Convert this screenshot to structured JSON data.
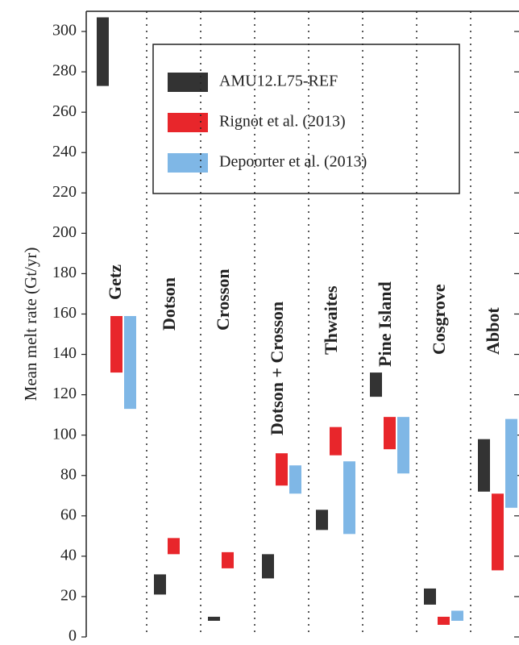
{
  "chart_data": {
    "type": "range-bar",
    "y_label": "Mean melt rate (Gt/yr)",
    "categories": [
      "Getz",
      "Dotson",
      "Crosson",
      "Dotson + Crosson",
      "Thwaites",
      "Pine Island",
      "Cosgrove",
      "Abbot"
    ],
    "series": [
      {
        "name": "AMU12.L75-REF",
        "color": "#333333",
        "low": [
          273,
          21,
          8,
          29,
          53,
          119,
          16,
          72
        ],
        "high": [
          307,
          31,
          10,
          41,
          63,
          131,
          24,
          98
        ]
      },
      {
        "name": "Rignot et al. (2013)",
        "color": "#e8262b",
        "low": [
          131,
          41,
          34,
          75,
          90,
          93,
          6,
          33
        ],
        "high": [
          159,
          49,
          42,
          91,
          104,
          109,
          10,
          71
        ]
      },
      {
        "name": "Depoorter et al. (2013)",
        "color": "#7fb7e6",
        "low": [
          113,
          null,
          null,
          71,
          51,
          81,
          8,
          64
        ],
        "high": [
          159,
          null,
          null,
          85,
          87,
          109,
          13,
          108
        ]
      }
    ],
    "ylim": [
      0,
      310
    ],
    "yticks": [
      0,
      20,
      40,
      60,
      80,
      100,
      120,
      140,
      160,
      180,
      200,
      220,
      240,
      260,
      280,
      300
    ]
  }
}
